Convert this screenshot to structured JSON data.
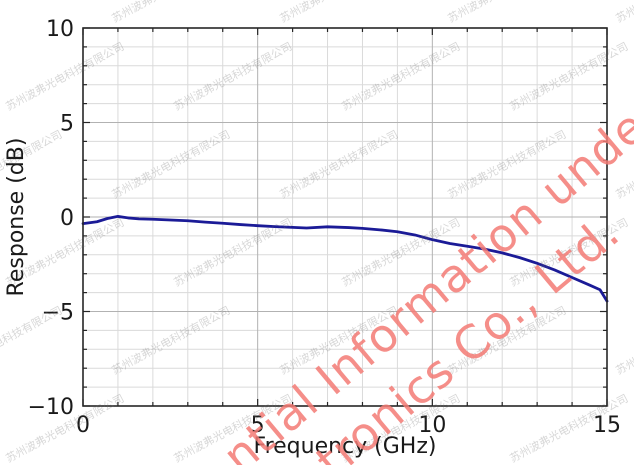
{
  "watermarks": {
    "company_cn": "苏州波弗光电科技有限公司",
    "red_line1": "ntial Information under",
    "red_line2": "tronics Co., Ltd.",
    "red_color": "#f37a74",
    "gray_color": "#6e6e6e"
  },
  "chart_data": {
    "type": "line",
    "title": "",
    "xlabel": "Frequency (GHz)",
    "ylabel": "Response (dB)",
    "xlim": [
      0,
      15
    ],
    "ylim": [
      -10,
      10
    ],
    "x_major_ticks": [
      0,
      5,
      10,
      15
    ],
    "y_major_ticks": [
      -10,
      -5,
      0,
      5,
      10
    ],
    "x_minor_step": 1,
    "y_minor_step": 1,
    "grid": "major and minor gridlines on",
    "legend": "none",
    "line_color": "#1b1b97",
    "series": [
      {
        "name": "Response",
        "points": [
          [
            0.0,
            -0.35
          ],
          [
            0.4,
            -0.25
          ],
          [
            0.7,
            -0.08
          ],
          [
            1.0,
            0.03
          ],
          [
            1.3,
            -0.05
          ],
          [
            1.6,
            -0.1
          ],
          [
            2.0,
            -0.12
          ],
          [
            2.5,
            -0.16
          ],
          [
            3.0,
            -0.2
          ],
          [
            3.5,
            -0.27
          ],
          [
            4.0,
            -0.33
          ],
          [
            4.5,
            -0.4
          ],
          [
            5.0,
            -0.46
          ],
          [
            5.5,
            -0.51
          ],
          [
            6.0,
            -0.55
          ],
          [
            6.4,
            -0.58
          ],
          [
            7.0,
            -0.52
          ],
          [
            7.6,
            -0.56
          ],
          [
            8.0,
            -0.6
          ],
          [
            8.5,
            -0.68
          ],
          [
            9.0,
            -0.78
          ],
          [
            9.5,
            -0.95
          ],
          [
            10.0,
            -1.2
          ],
          [
            10.5,
            -1.4
          ],
          [
            11.0,
            -1.55
          ],
          [
            11.5,
            -1.7
          ],
          [
            12.0,
            -1.9
          ],
          [
            12.5,
            -2.15
          ],
          [
            13.0,
            -2.45
          ],
          [
            13.5,
            -2.8
          ],
          [
            14.0,
            -3.2
          ],
          [
            14.5,
            -3.6
          ],
          [
            14.8,
            -3.85
          ],
          [
            15.0,
            -4.45
          ]
        ]
      }
    ]
  }
}
